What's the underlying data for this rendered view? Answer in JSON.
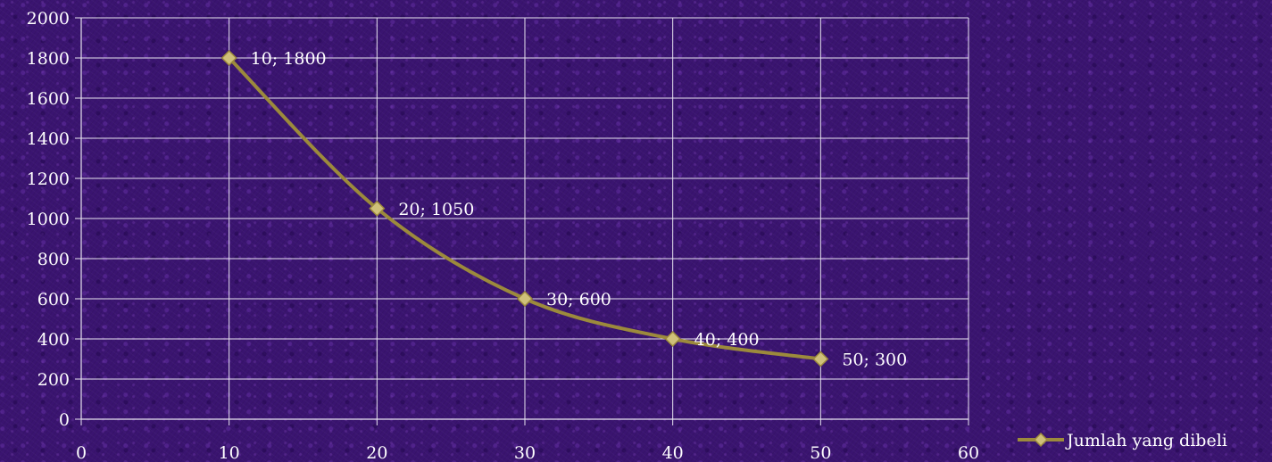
{
  "chart_data": {
    "type": "line",
    "smooth": true,
    "title": "",
    "xlabel": "",
    "ylabel": "",
    "xlim": [
      0,
      60
    ],
    "ylim": [
      0,
      2000
    ],
    "x_ticks": [
      "0",
      "10",
      "20",
      "30",
      "40",
      "50",
      "60"
    ],
    "y_ticks": [
      "0",
      "200",
      "400",
      "600",
      "800",
      "1000",
      "1200",
      "1400",
      "1600",
      "1800",
      "2000"
    ],
    "grid": true,
    "legend_position": "bottom-right",
    "series": [
      {
        "name": "Jumlah yang dibeli",
        "color": "#9c8a3c",
        "marker": "diamond",
        "x": [
          10,
          20,
          30,
          40,
          50
        ],
        "y": [
          1800,
          1050,
          600,
          400,
          300
        ],
        "labels": [
          "10; 1800",
          "20; 1050",
          "30; 600",
          "40; 400",
          "50; 300"
        ]
      }
    ]
  },
  "colors": {
    "background": "#3a1470",
    "grid": "#e8e4f0",
    "line": "#9c8a3c",
    "marker_fill": "#cfc07a",
    "text": "#ffffff"
  }
}
